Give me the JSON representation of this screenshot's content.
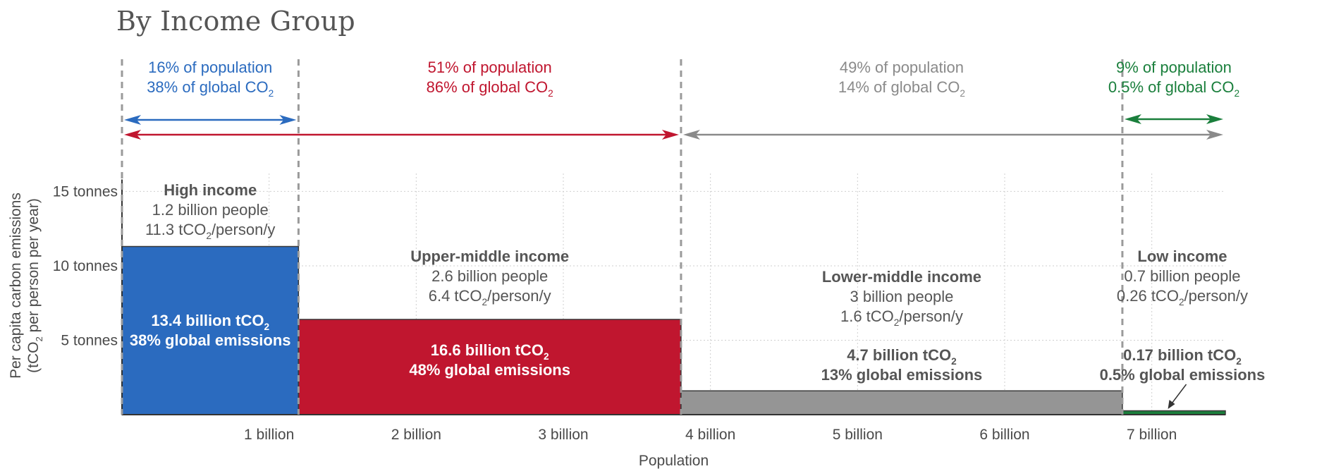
{
  "chart_data": {
    "type": "bar",
    "subtype": "variable-width bar (population on x, per-capita emissions on y)",
    "title": "By Income Group",
    "xlabel": "Population",
    "ylabel": "Per capita carbon emissions",
    "ylabel_sub_parts": [
      "(tCO",
      "2",
      " per person per year)"
    ],
    "x_range": [
      0,
      7.5
    ],
    "y_range": [
      0,
      16.3
    ],
    "x_ticks": [
      {
        "value": 1,
        "label": "1 billion"
      },
      {
        "value": 2,
        "label": "2 billion"
      },
      {
        "value": 3,
        "label": "3 billion"
      },
      {
        "value": 4,
        "label": "4 billion"
      },
      {
        "value": 5,
        "label": "5 billion"
      },
      {
        "value": 6,
        "label": "6 billion"
      },
      {
        "value": 7,
        "label": "7 billion"
      }
    ],
    "y_ticks": [
      {
        "value": 5,
        "label": "5 tonnes"
      },
      {
        "value": 10,
        "label": "10 tonnes"
      },
      {
        "value": 15,
        "label": "15 tonnes"
      }
    ],
    "grid": "dotted",
    "groups": [
      {
        "id": "high-income",
        "name": "High income",
        "x_start": 0,
        "x_end": 1.2,
        "value": 11.3,
        "color": "#2b6bbf",
        "people": "1.2 billion people",
        "rate_parts": [
          "11.3 tCO",
          "2",
          "/person/y"
        ],
        "total_parts": [
          "13.4 billion tCO",
          "2"
        ],
        "share": "38% global emissions"
      },
      {
        "id": "upper-middle-income",
        "name": "Upper-middle income",
        "x_start": 1.2,
        "x_end": 3.8,
        "value": 6.4,
        "color": "#c0162f",
        "people": "2.6 billion people",
        "rate_parts": [
          "6.4 tCO",
          "2",
          "/person/y"
        ],
        "total_parts": [
          "16.6 billion tCO",
          "2"
        ],
        "share": "48% global emissions"
      },
      {
        "id": "lower-middle-income",
        "name": "Lower-middle income",
        "x_start": 3.8,
        "x_end": 6.8,
        "value": 1.6,
        "color": "#959595",
        "people": "3 billion people",
        "rate_parts": [
          "1.6 tCO",
          "2",
          "/person/y"
        ],
        "total_parts": [
          "4.7 billion tCO",
          "2"
        ],
        "share": "13% global emissions"
      },
      {
        "id": "low-income",
        "name": "Low income",
        "x_start": 6.8,
        "x_end": 7.5,
        "value": 0.26,
        "color": "#1a7f3c",
        "people": "0.7 billion people",
        "rate_parts": [
          "0.26 tCO",
          "2",
          "/person/y"
        ],
        "total_parts": [
          "0.17 billion tCO",
          "2"
        ],
        "share": "0.5% global emissions"
      }
    ],
    "population_annotations": [
      {
        "id": "high",
        "pop": "16% of population",
        "co2_parts": [
          "38% of global CO",
          "2"
        ],
        "color": "#2b6bbf",
        "x_start": 0,
        "x_end": 1.2
      },
      {
        "id": "upper-middle-plus",
        "pop": "51% of population",
        "co2_parts": [
          "86% of global CO",
          "2"
        ],
        "color": "#c0162f",
        "x_start": 0,
        "x_end": 3.8
      },
      {
        "id": "lower-middle-plus",
        "pop": "49% of population",
        "co2_parts": [
          "14% of global CO",
          "2"
        ],
        "color": "#8a8a8a",
        "x_start": 3.8,
        "x_end": 7.5
      },
      {
        "id": "low",
        "pop": "9% of population",
        "co2_parts": [
          "0.5% of global CO",
          "2"
        ],
        "color": "#1a7f3c",
        "x_start": 6.8,
        "x_end": 7.5
      }
    ]
  }
}
